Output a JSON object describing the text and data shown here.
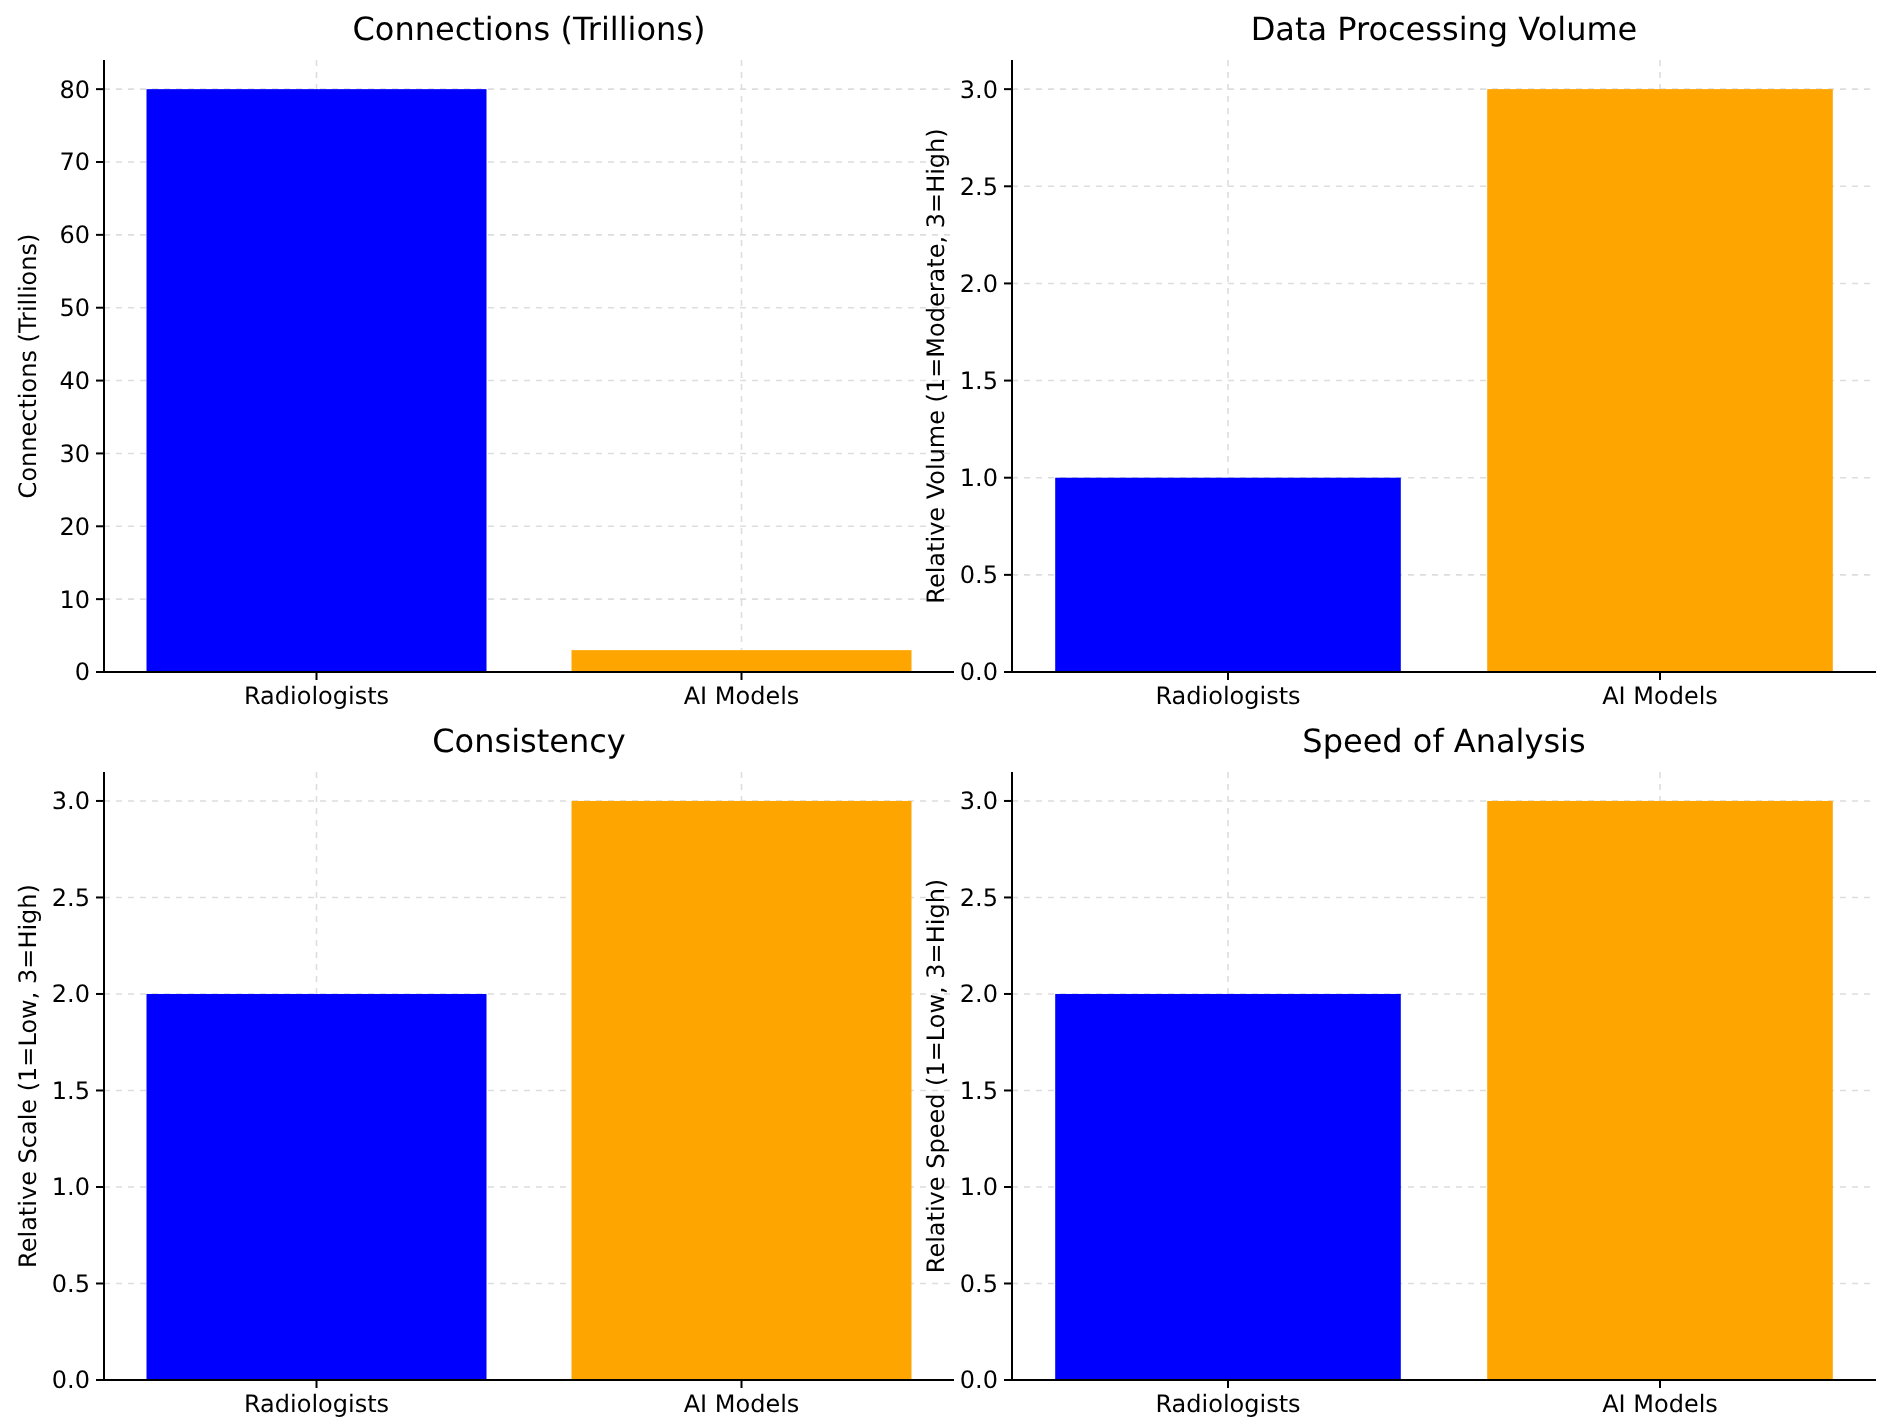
{
  "chart_data": [
    {
      "type": "bar",
      "title": "Connections (Trillions)",
      "ylabel": "Connections (Trillions)",
      "categories": [
        "Radiologists",
        "AI Models"
      ],
      "values": [
        80,
        3
      ],
      "colors": [
        "#0000ff",
        "#ffa500"
      ],
      "ylim": [
        0,
        84
      ],
      "yticks": [
        0,
        10,
        20,
        30,
        40,
        50,
        60,
        70,
        80
      ],
      "grid": true
    },
    {
      "type": "bar",
      "title": "Data Processing Volume",
      "ylabel": "Relative Volume (1=Moderate, 3=High)",
      "categories": [
        "Radiologists",
        "AI Models"
      ],
      "values": [
        1,
        3
      ],
      "colors": [
        "#0000ff",
        "#ffa500"
      ],
      "ylim": [
        0,
        3.15
      ],
      "yticks": [
        {
          "value": 0,
          "label": "0.0"
        },
        {
          "value": 0.5,
          "label": "0.5"
        },
        {
          "value": 1,
          "label": "1.0"
        },
        {
          "value": 1.5,
          "label": "1.5"
        },
        {
          "value": 2,
          "label": "2.0"
        },
        {
          "value": 2.5,
          "label": "2.5"
        },
        {
          "value": 3,
          "label": "3.0"
        }
      ],
      "grid": true
    },
    {
      "type": "bar",
      "title": "Consistency",
      "ylabel": "Relative Scale (1=Low, 3=High)",
      "categories": [
        "Radiologists",
        "AI Models"
      ],
      "values": [
        2,
        3
      ],
      "colors": [
        "#0000ff",
        "#ffa500"
      ],
      "ylim": [
        0,
        3.15
      ],
      "yticks": [
        {
          "value": 0,
          "label": "0.0"
        },
        {
          "value": 0.5,
          "label": "0.5"
        },
        {
          "value": 1,
          "label": "1.0"
        },
        {
          "value": 1.5,
          "label": "1.5"
        },
        {
          "value": 2,
          "label": "2.0"
        },
        {
          "value": 2.5,
          "label": "2.5"
        },
        {
          "value": 3,
          "label": "3.0"
        }
      ],
      "grid": true
    },
    {
      "type": "bar",
      "title": "Speed of Analysis",
      "ylabel": "Relative Speed (1=Low, 3=High)",
      "categories": [
        "Radiologists",
        "AI Models"
      ],
      "values": [
        2,
        3
      ],
      "colors": [
        "#0000ff",
        "#ffa500"
      ],
      "ylim": [
        0,
        3.15
      ],
      "yticks": [
        {
          "value": 0,
          "label": "0.0"
        },
        {
          "value": 0.5,
          "label": "0.5"
        },
        {
          "value": 1,
          "label": "1.0"
        },
        {
          "value": 1.5,
          "label": "1.5"
        },
        {
          "value": 2,
          "label": "2.0"
        },
        {
          "value": 2.5,
          "label": "2.5"
        },
        {
          "value": 3,
          "label": "3.0"
        }
      ],
      "grid": true
    }
  ]
}
